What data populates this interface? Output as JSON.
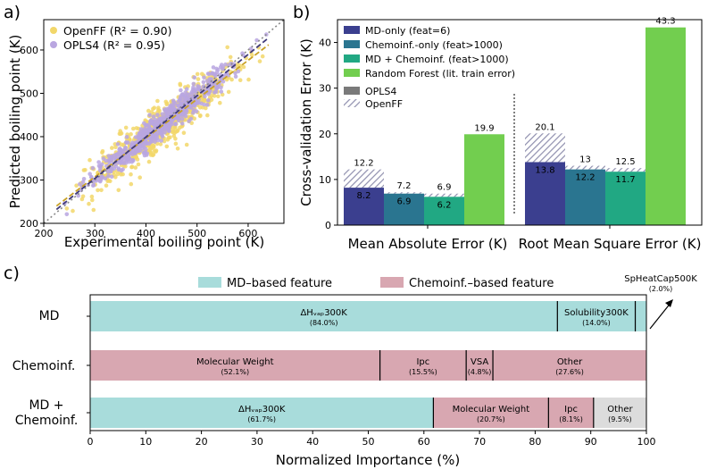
{
  "panel_labels": {
    "a": "a)",
    "b": "b)",
    "c": "c)"
  },
  "colors": {
    "openff": "#f2d76a",
    "opls4": "#b9a6e0",
    "openff_fit": "#c9a227",
    "opls4_fit": "#3f3a7a",
    "md_only": "#3b3f8f",
    "chemoinf_only": "#2a7590",
    "md_chemoinf": "#21a883",
    "random_forest": "#72ce4f",
    "hatch": "#9a9ab4",
    "md_feature": "#a8dcdb",
    "chemoinf_feature": "#d8a7b1",
    "other_feature": "#dcdcdc"
  },
  "chart_data": [
    {
      "type": "scatter",
      "xlabel": "Experimental boiling point (K)",
      "ylabel": "Predicted boiling point (K)",
      "xlim": [
        200,
        670
      ],
      "ylim": [
        200,
        670
      ],
      "xticks": [
        "200",
        "300",
        "400",
        "500",
        "600"
      ],
      "yticks": [
        "200",
        "300",
        "400",
        "500",
        "600"
      ],
      "legend": {
        "position": "top-left",
        "entries": [
          "OpenFF (R² = 0.90)",
          "OPLS4 (R² = 0.95)"
        ]
      },
      "series": [
        {
          "name": "OpenFF (R² = 0.90)",
          "r2": 0.9,
          "x_range": [
            228,
            640
          ],
          "fit": [
            [
              225,
              240
            ],
            [
              640,
              612
            ]
          ]
        },
        {
          "name": "OPLS4 (R² = 0.95)",
          "r2": 0.95,
          "x_range": [
            228,
            660
          ],
          "fit": [
            [
              225,
              232
            ],
            [
              640,
              628
            ]
          ]
        }
      ],
      "identity_line": true
    },
    {
      "type": "bar",
      "ylabel": "Cross-validation Error (K)",
      "ylim": [
        0,
        45
      ],
      "yticks": [
        "0",
        "10",
        "20",
        "30",
        "40"
      ],
      "categories": [
        "Mean Absolute Error (K)",
        "Root Mean Square Error (K)"
      ],
      "series": [
        {
          "name": "MD-only (feat=6)",
          "opls4": [
            8.2,
            13.8
          ],
          "openff": [
            12.2,
            20.1
          ]
        },
        {
          "name": "Chemoinf.-only (feat>1000)",
          "opls4": [
            6.9,
            12.2
          ],
          "openff": [
            7.2,
            13.0
          ]
        },
        {
          "name": "MD + Chemoinf. (feat>1000)",
          "opls4": [
            6.2,
            11.7
          ],
          "openff": [
            6.9,
            12.5
          ]
        },
        {
          "name": "Random Forest (lit. train error)",
          "values": [
            19.9,
            43.3
          ]
        }
      ],
      "legend2": [
        "OPLS4",
        "OpenFF"
      ]
    },
    {
      "type": "bar",
      "orientation": "horizontal-stacked",
      "xlabel": "Normalized Importance (%)",
      "xlim": [
        0,
        100
      ],
      "xticks": [
        "0",
        "10",
        "20",
        "30",
        "40",
        "50",
        "60",
        "70",
        "80",
        "90",
        "100"
      ],
      "legend": [
        "MD–based feature",
        "Chemoinf.–based feature"
      ],
      "rows": [
        {
          "label": "MD",
          "segments": [
            {
              "name": "ΔH_vap300K",
              "pct_text": "(84.0%)",
              "value": 84.0,
              "kind": "md"
            },
            {
              "name": "Solubility300K",
              "pct_text": "(14.0%)",
              "value": 14.0,
              "kind": "md"
            },
            {
              "name": "SpHeatCap500K",
              "pct_text": "(2.0%)",
              "value": 2.0,
              "kind": "md"
            }
          ]
        },
        {
          "label": "Chemoinf.",
          "segments": [
            {
              "name": "Molecular Weight",
              "pct_text": "(52.1%)",
              "value": 52.1,
              "kind": "chem"
            },
            {
              "name": "Ipc",
              "pct_text": "(15.5%)",
              "value": 15.5,
              "kind": "chem"
            },
            {
              "name": "VSA",
              "pct_text": "(4.8%)",
              "value": 4.8,
              "kind": "chem"
            },
            {
              "name": "Other",
              "pct_text": "(27.6%)",
              "value": 27.6,
              "kind": "chem"
            }
          ]
        },
        {
          "label": "MD + Chemoinf.",
          "segments": [
            {
              "name": "ΔH_vap300K",
              "pct_text": "(61.7%)",
              "value": 61.7,
              "kind": "md"
            },
            {
              "name": "Molecular Weight",
              "pct_text": "(20.7%)",
              "value": 20.7,
              "kind": "chem"
            },
            {
              "name": "Ipc",
              "pct_text": "(8.1%)",
              "value": 8.1,
              "kind": "chem"
            },
            {
              "name": "Other",
              "pct_text": "(9.5%)",
              "value": 9.5,
              "kind": "other"
            }
          ]
        }
      ]
    }
  ]
}
